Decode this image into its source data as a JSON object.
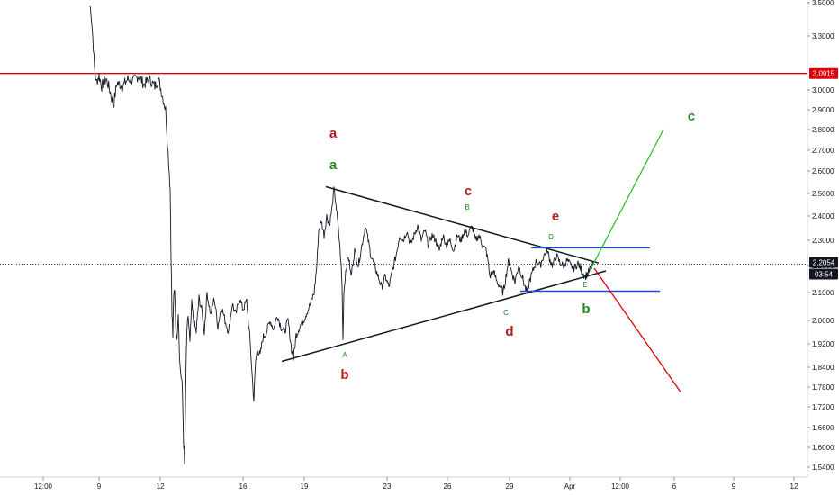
{
  "chart_data": {
    "type": "line",
    "title": "",
    "instrument_series": "price",
    "colors": {
      "price": "#131722",
      "resistance": "#e0000a",
      "triangle": "#131722",
      "box": "#1848e6",
      "bullish": "#29c02a",
      "bearish": "#e0000a",
      "wave_red": "#b71c1c",
      "wave_green": "#1b8a1b",
      "tag_red_bg": "#e0000a",
      "tag_dark_bg": "#131722"
    },
    "y_axis": {
      "side": "right",
      "range": [
        1.52,
        3.51
      ],
      "ticks": [
        "1.5400",
        "1.6000",
        "1.6600",
        "1.7200",
        "1.7800",
        "1.8400",
        "1.9200",
        "2.0000",
        "2.1000",
        "2.2000",
        "2.3000",
        "2.4000",
        "2.5000",
        "2.6000",
        "2.7000",
        "2.8000",
        "2.9000",
        "3.0000",
        "3.3000",
        "3.5000"
      ]
    },
    "x_axis": {
      "ticks": [
        "12:00",
        "9",
        "12",
        "16",
        "19",
        "23",
        "26",
        "29",
        "Apr",
        "12:00",
        "6",
        "9",
        "12"
      ]
    },
    "price_tags": {
      "resistance": "3.0915",
      "current": "2.2054",
      "countdown": "03:54"
    },
    "levels": {
      "resistance": 3.0915,
      "current": 2.2054,
      "box_top": 2.27,
      "box_bottom": 2.105
    },
    "wave_labels": [
      {
        "text": "a",
        "color": "red",
        "size": "large"
      },
      {
        "text": "a",
        "color": "green",
        "size": "large"
      },
      {
        "text": "b",
        "color": "red",
        "size": "large"
      },
      {
        "text": "A",
        "color": "green",
        "size": "small"
      },
      {
        "text": "c",
        "color": "red",
        "size": "large"
      },
      {
        "text": "B",
        "color": "green",
        "size": "small"
      },
      {
        "text": "C",
        "color": "green",
        "size": "small"
      },
      {
        "text": "d",
        "color": "red",
        "size": "large"
      },
      {
        "text": "e",
        "color": "red",
        "size": "large"
      },
      {
        "text": "D",
        "color": "green",
        "size": "small"
      },
      {
        "text": "E",
        "color": "green",
        "size": "small"
      },
      {
        "text": "b",
        "color": "green",
        "size": "large"
      },
      {
        "text": "c",
        "color": "green",
        "size": "large"
      }
    ],
    "legend": "none",
    "grid": false
  }
}
